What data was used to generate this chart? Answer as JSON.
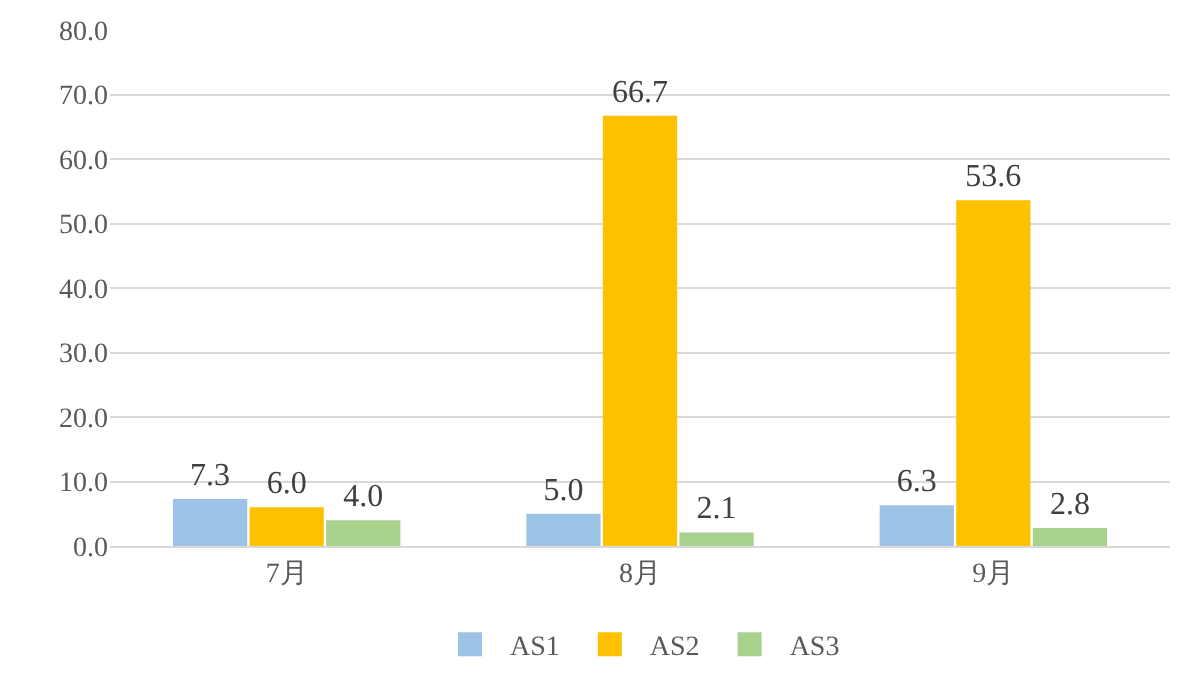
{
  "chart_data": {
    "type": "bar",
    "categories": [
      "7月",
      "8月",
      "9月"
    ],
    "series": [
      {
        "name": "AS1",
        "color": "#9dc3e6",
        "values": [
          7.3,
          5.0,
          6.3
        ],
        "value_labels": [
          "7.3",
          "5.0",
          "6.3"
        ]
      },
      {
        "name": "AS2",
        "color": "#ffc000",
        "values": [
          6.0,
          66.7,
          53.6
        ],
        "value_labels": [
          "6.0",
          "66.7",
          "53.6"
        ]
      },
      {
        "name": "AS3",
        "color": "#a9d18e",
        "values": [
          4.0,
          2.1,
          2.8
        ],
        "value_labels": [
          "4.0",
          "2.1",
          "2.8"
        ]
      }
    ],
    "ylim": [
      0,
      80
    ],
    "yticks": [
      {
        "value": 0,
        "label": "0.0"
      },
      {
        "value": 10,
        "label": "10.0"
      },
      {
        "value": 20,
        "label": "20.0"
      },
      {
        "value": 30,
        "label": "30.0"
      },
      {
        "value": 40,
        "label": "40.0"
      },
      {
        "value": 50,
        "label": "50.0"
      },
      {
        "value": 60,
        "label": "60.0"
      },
      {
        "value": 70,
        "label": "70.0"
      },
      {
        "value": 80,
        "label": "80.0"
      }
    ],
    "grid": "y",
    "legend": "bottom"
  }
}
